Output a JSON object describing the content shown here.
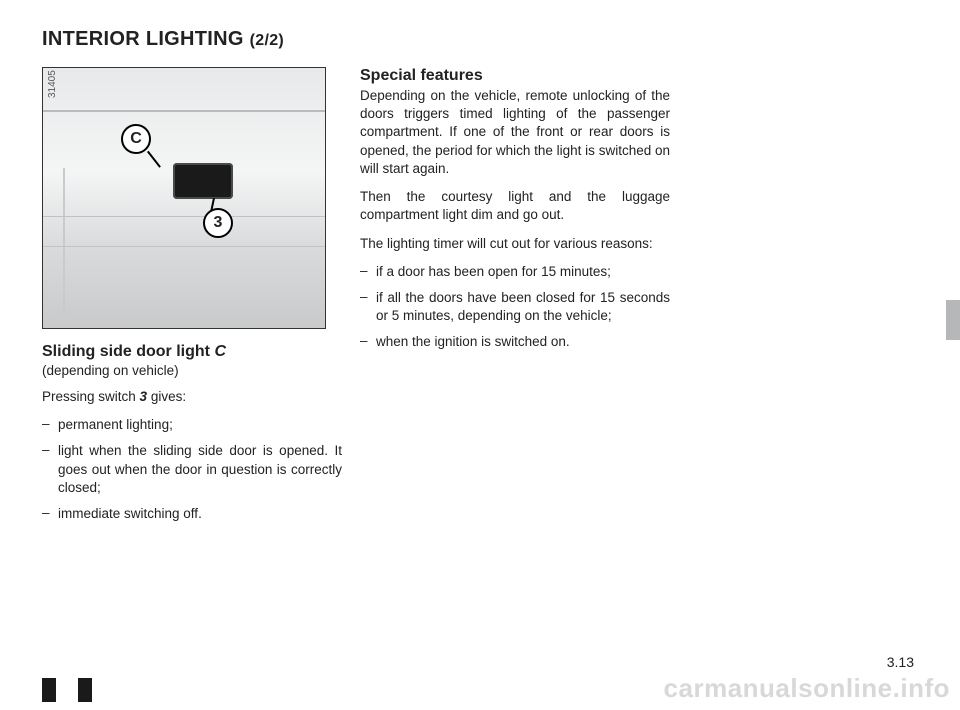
{
  "title_main": "INTERIOR LIGHTING",
  "title_part": "(2/2)",
  "figure": {
    "photo_id": "31405",
    "badge_c": "C",
    "badge_3": "3"
  },
  "left": {
    "heading_prefix": "Sliding side door light ",
    "heading_em": "C",
    "note": "(depending on vehicle)",
    "press_pre": "Pressing switch ",
    "press_em": "3",
    "press_post": " gives:",
    "bullets": [
      "permanent lighting;",
      "light when the sliding side door is opened. It goes out when the door in question is correctly closed;",
      "immediate switching off."
    ]
  },
  "right": {
    "heading": "Special features",
    "p1": "Depending on the vehicle, remote unlocking of the doors triggers timed lighting of the passenger compartment. If one of the front or rear doors is opened, the period for which the light is switched on will start again.",
    "p2": "Then the courtesy light and the luggage compartment light dim and go out.",
    "p3": "The lighting timer will cut out for various reasons:",
    "bullets": [
      "if a door has been open for 15 minutes;",
      "if all the doors have been closed for 15 seconds or 5 minutes, depending on the vehicle;",
      "when the ignition is switched on."
    ]
  },
  "page_number": "3.13",
  "watermark": "carmanualsonline.info"
}
